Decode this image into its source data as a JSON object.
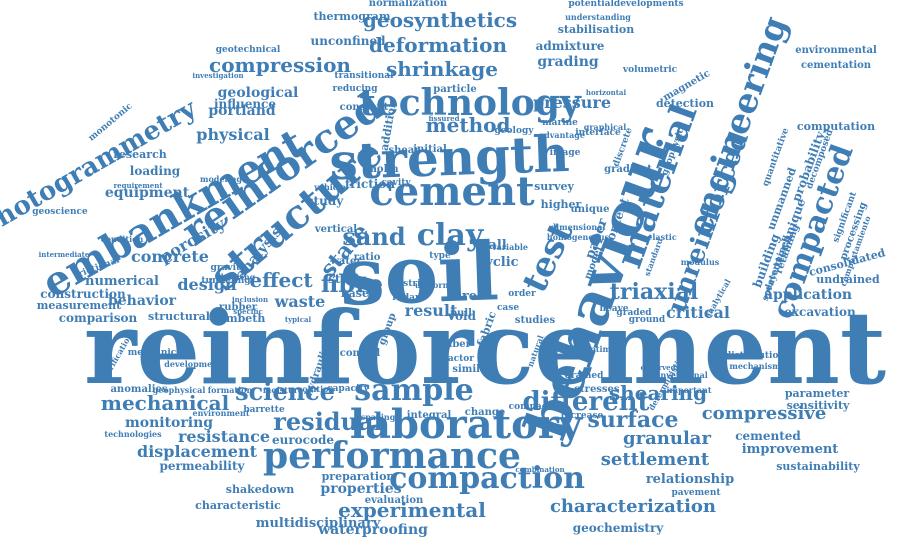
{
  "colors": {
    "word": "#3f7db5",
    "background": "#ffffff"
  },
  "words": [
    "reinforcement",
    "soil",
    "strength",
    "behaviour",
    "embankment",
    "reinforced",
    "structure",
    "cement",
    "technology",
    "engineering",
    "laboratory",
    "performance",
    "sample",
    "compaction",
    "material",
    "test",
    "compacted",
    "photogrammetry",
    "unreinforced",
    "triaxial",
    "geosynthetics",
    "deformation",
    "shrinkage",
    "compression",
    "method",
    "clay",
    "sand",
    "state",
    "fibre",
    "effect",
    "different",
    "mechanical",
    "science",
    "residual",
    "experimental",
    "characterization",
    "surface",
    "compressive",
    "shearing",
    "granular",
    "settlement",
    "waterproofing",
    "geochemistry",
    "multidisciplinary",
    "properties",
    "shakedown",
    "displacement",
    "permeability",
    "resistance",
    "eurocode",
    "monitoring",
    "waste",
    "result",
    "critical",
    "application",
    "excavation",
    "undrained",
    "consolidated",
    "behavior",
    "design",
    "concrete",
    "porosity",
    "analysis",
    "equipment",
    "physical",
    "portland",
    "geological",
    "influence",
    "pressure",
    "grading",
    "admixture",
    "stabilisation",
    "environmental",
    "cementation",
    "computation",
    "unconfined",
    "thermogram",
    "normalization",
    "potentialdevelopments",
    "construction",
    "measurement",
    "comparison",
    "numerical",
    "structural",
    "lambeth",
    "relationship",
    "improvement",
    "sustainability",
    "cemented",
    "parameter",
    "sensitivity",
    "characteristic",
    "evaluation",
    "preparation",
    "pavement",
    "mechanic",
    "anomalies",
    "technologies",
    "quantitative",
    "unmanned",
    "technique",
    "building",
    "probability",
    "detection",
    "magnetic",
    "volumetric",
    "geotechnical",
    "research",
    "loading",
    "geoscience",
    "condition",
    "frictional",
    "monotonic",
    "friction",
    "kaolin",
    "shear",
    "study",
    "vertical",
    "strain",
    "ratio",
    "wall",
    "cyclic",
    "paper",
    "content",
    "model",
    "higher",
    "survey",
    "unique",
    "gradient",
    "fabric",
    "stresses",
    "grained",
    "distribution",
    "mechanism",
    "ground",
    "graded",
    "studies",
    "fiber",
    "factor",
    "similar",
    "integral",
    "change",
    "compact",
    "increase",
    "spacing",
    "barrette",
    "environment",
    "geophysical",
    "formation",
    "moisture",
    "solution",
    "capacity",
    "development",
    "verification",
    "hydraulic",
    "rubber",
    "gravity",
    "bearing",
    "inclusion",
    "specific",
    "typical",
    "water",
    "base",
    "tire",
    "void",
    "pull",
    "initial",
    "particle",
    "constant",
    "transitional",
    "reducing",
    "addition",
    "cavity",
    "vehicle",
    "geology",
    "marine",
    "interface",
    "discrete",
    "image",
    "understanding",
    "horizontal",
    "fissured",
    "modeling",
    "intermediate",
    "tunneling",
    "processing",
    "retaining",
    "sprayed",
    "determined",
    "decomposed",
    "advantage",
    "heave",
    "conventional",
    "observed",
    "important",
    "geophysics",
    "investigation",
    "requirement",
    "combination",
    "significant",
    "comportamiento",
    "deterministic",
    "modulus",
    "graphical",
    "optimal",
    "dimensional",
    "homogeneous",
    "standard",
    "elastic",
    "analytical",
    "variable",
    "natural",
    "order",
    "case",
    "type",
    "strip",
    "radar",
    "group",
    "control",
    "uniform"
  ]
}
